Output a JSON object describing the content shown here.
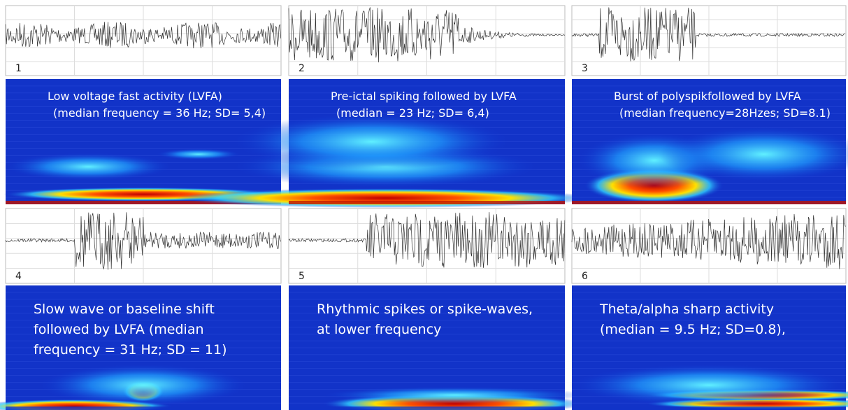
{
  "panels": [
    {
      "number": "1",
      "caption": [
        "Low voltage fast activity (LVFA)",
        "(median frequency = 36 Hz; SD= 5,4)"
      ]
    },
    {
      "number": "2",
      "caption": [
        "Pre-ictal spiking followed by LVFA",
        "(median = 23 Hz; SD= 6,4)"
      ]
    },
    {
      "number": "3",
      "caption": [
        "Burst of polyspikfollowed by LVFA",
        "(median frequency=28Hzes; SD=8.1)"
      ]
    },
    {
      "number": "4",
      "caption": [
        "Slow wave or baseline shift",
        "followed by LVFA (median",
        "frequency = 31 Hz; SD = 11)"
      ]
    },
    {
      "number": "5",
      "caption": [
        "Rhythmic spikes or spike-waves,",
        "at lower frequency"
      ]
    },
    {
      "number": "6",
      "caption": [
        "Theta/alpha sharp activity",
        "(median = 9.5 Hz; SD=0.8),"
      ]
    }
  ]
}
